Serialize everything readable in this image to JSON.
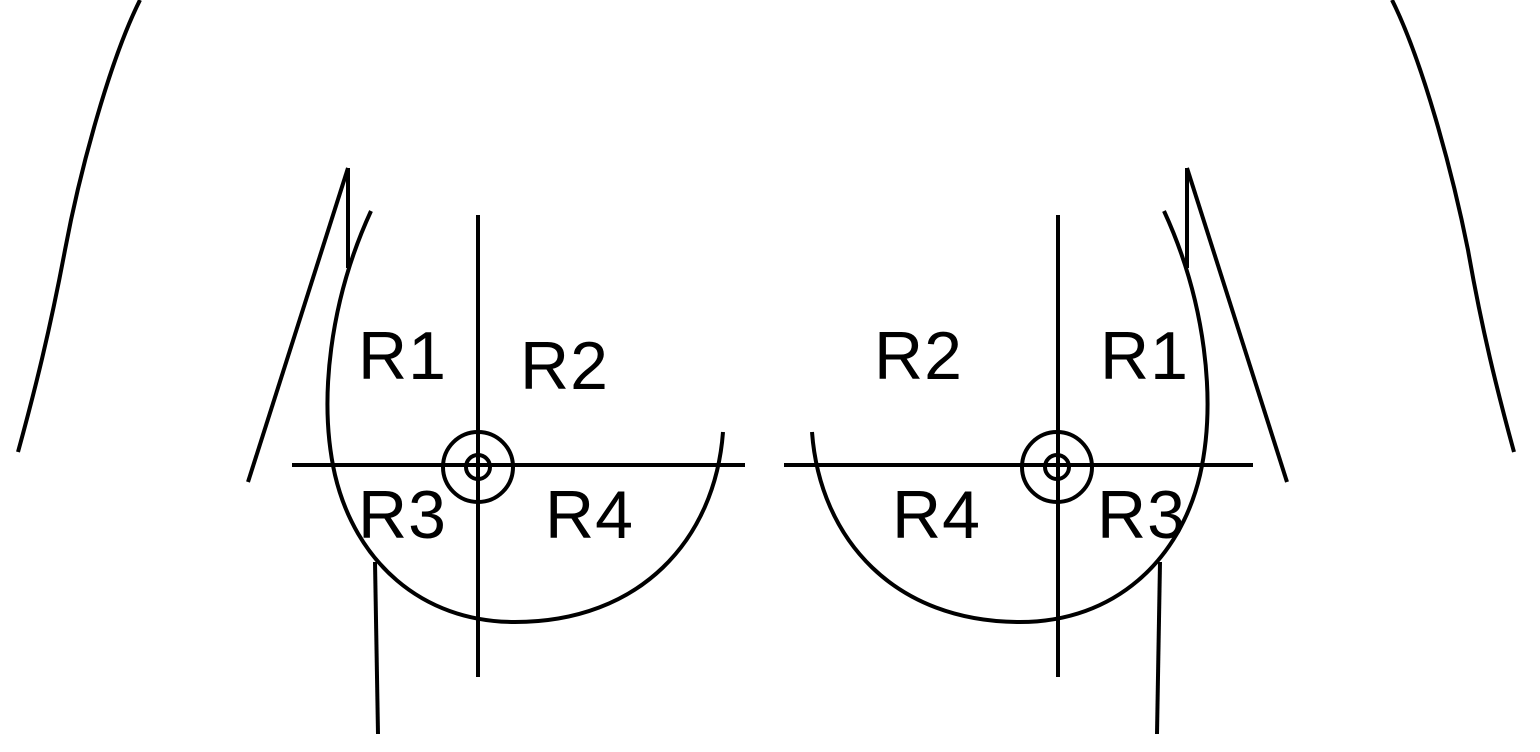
{
  "left_breast": {
    "labels": {
      "r1": "R1",
      "r2": "R2",
      "r3": "R3",
      "r4": "R4"
    }
  },
  "right_breast": {
    "labels": {
      "r1": "R1",
      "r2": "R2",
      "r3": "R3",
      "r4": "R4"
    }
  },
  "colors": {
    "line": "#000000",
    "background": "#ffffff"
  }
}
